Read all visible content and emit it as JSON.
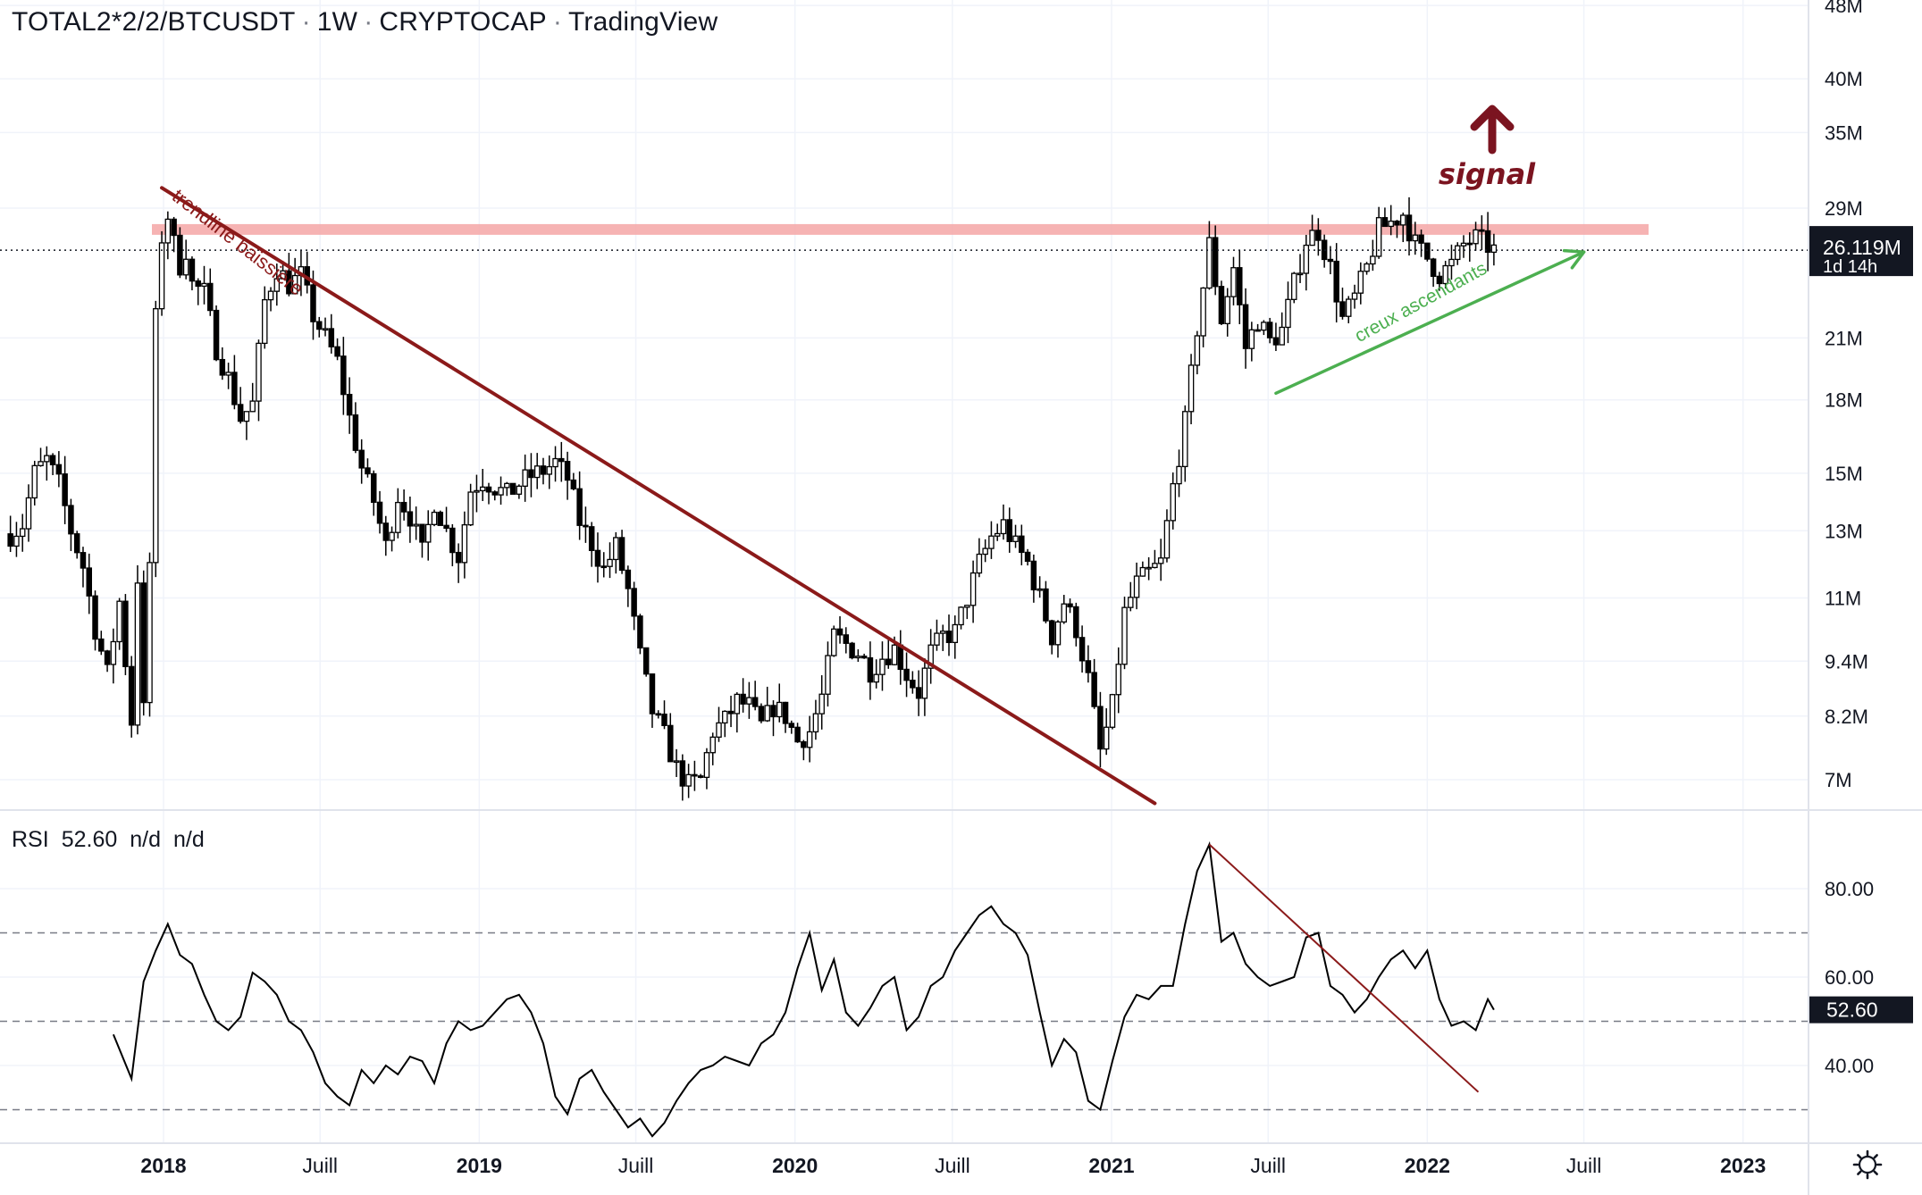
{
  "header": {
    "symbol": "TOTAL2*2/2/BTCUSDT",
    "interval": "1W",
    "exchange": "CRYPTOCAP",
    "source": "TradingView"
  },
  "rsi_header": {
    "name": "RSI",
    "value": "52.60",
    "na1": "n/d",
    "na2": "n/d"
  },
  "price_badge": {
    "value": "26.119M",
    "countdown": "1d 14h"
  },
  "rsi_badge": {
    "value": "52.60"
  },
  "annotations": {
    "trendline": "trendline baissière",
    "creux": "creux ascendants",
    "signal": "signal"
  },
  "colors": {
    "trendline": "#8b1a1a",
    "resistance": "#f4a6a6",
    "green_arrow": "#4caf50",
    "signal": "#7b1420",
    "candle": "#000000"
  },
  "chart_data": [
    {
      "type": "candlestick",
      "scale": "log",
      "x_tick_labels": [
        "2018",
        "Juill",
        "2019",
        "Juill",
        "2020",
        "Juill",
        "2021",
        "Juill",
        "2022",
        "Juill",
        "2023"
      ],
      "y_tick_labels": [
        "48M",
        "40M",
        "35M",
        "29M",
        "21M",
        "18M",
        "15M",
        "13M",
        "11M",
        "9.4M",
        "8.2M",
        "7M"
      ],
      "y_tick_values": [
        48,
        40,
        35,
        29,
        21,
        18,
        15,
        13,
        11,
        9.4,
        8.2,
        7
      ],
      "last_value": 26.119,
      "resistance_level": 27.5,
      "trendline": {
        "from": [
          "2017-12-30",
          30.5
        ],
        "to": [
          "2021-02-20",
          6.6
        ]
      },
      "green_arrow": {
        "from": [
          "2021-07-10",
          18.3
        ],
        "to": [
          "2022-07-01",
          26.0
        ]
      },
      "weekly_close": [
        [
          "2017-07-08",
          12.9
        ],
        [
          "2017-07-22",
          13.2
        ],
        [
          "2017-08-05",
          15.0
        ],
        [
          "2017-08-19",
          15.5
        ],
        [
          "2017-09-02",
          14.6
        ],
        [
          "2017-09-16",
          13.0
        ],
        [
          "2017-09-30",
          11.9
        ],
        [
          "2017-10-14",
          10.2
        ],
        [
          "2017-10-28",
          9.1
        ],
        [
          "2017-11-11",
          10.9
        ],
        [
          "2017-11-25",
          8.1
        ],
        [
          "2017-12-02",
          11.6
        ],
        [
          "2017-12-09",
          8.3
        ],
        [
          "2017-12-16",
          12.0
        ],
        [
          "2017-12-23",
          22.0
        ],
        [
          "2017-12-30",
          27.0
        ],
        [
          "2018-01-06",
          28.5
        ],
        [
          "2018-01-13",
          26.5
        ],
        [
          "2018-01-20",
          25.2
        ],
        [
          "2018-01-27",
          26.2
        ],
        [
          "2018-02-03",
          24.0
        ],
        [
          "2018-02-17",
          23.5
        ],
        [
          "2018-03-03",
          20.5
        ],
        [
          "2018-03-17",
          19.0
        ],
        [
          "2018-03-31",
          17.2
        ],
        [
          "2018-04-14",
          17.8
        ],
        [
          "2018-04-28",
          23.0
        ],
        [
          "2018-05-12",
          25.0
        ],
        [
          "2018-05-26",
          24.0
        ],
        [
          "2018-06-09",
          24.5
        ],
        [
          "2018-06-23",
          22.2
        ],
        [
          "2018-07-07",
          21.0
        ],
        [
          "2018-07-21",
          19.8
        ],
        [
          "2018-08-04",
          17.2
        ],
        [
          "2018-08-18",
          15.2
        ],
        [
          "2018-09-01",
          14.0
        ],
        [
          "2018-09-15",
          12.5
        ],
        [
          "2018-09-29",
          14.2
        ],
        [
          "2018-10-13",
          13.5
        ],
        [
          "2018-10-27",
          12.3
        ],
        [
          "2018-11-10",
          14.0
        ],
        [
          "2018-11-24",
          13.0
        ],
        [
          "2018-12-08",
          12.2
        ],
        [
          "2018-12-22",
          14.4
        ],
        [
          "2019-01-05",
          14.8
        ],
        [
          "2019-01-19",
          14.5
        ],
        [
          "2019-02-02",
          14.2
        ],
        [
          "2019-02-16",
          14.6
        ],
        [
          "2019-03-02",
          14.9
        ],
        [
          "2019-03-16",
          15.1
        ],
        [
          "2019-03-30",
          15.4
        ],
        [
          "2019-04-13",
          14.8
        ],
        [
          "2019-04-27",
          13.3
        ],
        [
          "2019-05-11",
          12.6
        ],
        [
          "2019-05-25",
          11.8
        ],
        [
          "2019-06-08",
          12.5
        ],
        [
          "2019-06-22",
          11.2
        ],
        [
          "2019-07-06",
          9.5
        ],
        [
          "2019-07-20",
          8.3
        ],
        [
          "2019-08-03",
          7.8
        ],
        [
          "2019-08-17",
          7.2
        ],
        [
          "2019-08-31",
          6.9
        ],
        [
          "2019-09-14",
          7.0
        ],
        [
          "2019-09-28",
          7.9
        ],
        [
          "2019-10-12",
          8.1
        ],
        [
          "2019-10-26",
          8.5
        ],
        [
          "2019-11-09",
          8.4
        ],
        [
          "2019-11-23",
          8.0
        ],
        [
          "2019-12-07",
          8.4
        ],
        [
          "2019-12-21",
          8.2
        ],
        [
          "2020-01-04",
          7.7
        ],
        [
          "2020-01-18",
          7.9
        ],
        [
          "2020-02-01",
          8.6
        ],
        [
          "2020-02-15",
          10.0
        ],
        [
          "2020-02-29",
          9.8
        ],
        [
          "2020-03-14",
          9.6
        ],
        [
          "2020-03-28",
          9.2
        ],
        [
          "2020-04-11",
          9.5
        ],
        [
          "2020-04-25",
          9.7
        ],
        [
          "2020-05-09",
          9.1
        ],
        [
          "2020-05-23",
          8.7
        ],
        [
          "2020-06-06",
          9.6
        ],
        [
          "2020-06-20",
          10.0
        ],
        [
          "2020-07-04",
          10.1
        ],
        [
          "2020-07-18",
          11.0
        ],
        [
          "2020-08-01",
          12.0
        ],
        [
          "2020-08-15",
          12.8
        ],
        [
          "2020-08-29",
          13.2
        ],
        [
          "2020-09-12",
          12.5
        ],
        [
          "2020-09-26",
          12.0
        ],
        [
          "2020-10-10",
          11.0
        ],
        [
          "2020-10-24",
          10.0
        ],
        [
          "2020-11-07",
          10.9
        ],
        [
          "2020-11-21",
          10.2
        ],
        [
          "2020-12-05",
          9.0
        ],
        [
          "2020-12-19",
          7.5
        ],
        [
          "2021-01-02",
          8.4
        ],
        [
          "2021-01-16",
          10.6
        ],
        [
          "2021-01-30",
          11.4
        ],
        [
          "2021-02-13",
          11.7
        ],
        [
          "2021-02-27",
          12.0
        ],
        [
          "2021-03-13",
          14.5
        ],
        [
          "2021-03-27",
          17.0
        ],
        [
          "2021-04-10",
          21.5
        ],
        [
          "2021-04-24",
          26.5
        ],
        [
          "2021-05-08",
          22.0
        ],
        [
          "2021-05-22",
          25.0
        ],
        [
          "2021-06-05",
          20.5
        ],
        [
          "2021-06-19",
          22.0
        ],
        [
          "2021-07-03",
          20.8
        ],
        [
          "2021-07-17",
          21.4
        ],
        [
          "2021-07-31",
          24.0
        ],
        [
          "2021-08-14",
          26.8
        ],
        [
          "2021-08-28",
          27.4
        ],
        [
          "2021-09-11",
          25.0
        ],
        [
          "2021-09-25",
          22.0
        ],
        [
          "2021-10-09",
          23.2
        ],
        [
          "2021-10-23",
          25.0
        ],
        [
          "2021-11-06",
          27.5
        ],
        [
          "2021-11-20",
          28.0
        ],
        [
          "2021-12-04",
          28.6
        ],
        [
          "2021-12-18",
          26.5
        ],
        [
          "2022-01-01",
          25.6
        ],
        [
          "2022-01-15",
          24.6
        ],
        [
          "2022-01-29",
          25.2
        ],
        [
          "2022-02-12",
          26.5
        ],
        [
          "2022-02-26",
          26.9
        ],
        [
          "2022-03-12",
          26.4
        ],
        [
          "2022-03-19",
          26.119
        ]
      ]
    },
    {
      "type": "line",
      "name": "RSI",
      "y_tick_labels": [
        "80.00",
        "60.00",
        "40.00"
      ],
      "y_tick_values": [
        80,
        60,
        40
      ],
      "bands": [
        70,
        50,
        30
      ],
      "last_value": 52.6,
      "trendline": {
        "from": [
          "2021-04-24",
          90.0
        ],
        "to": [
          "2022-03-01",
          34.0
        ]
      },
      "x": [
        "2017-11-04",
        "2017-11-25",
        "2017-12-09",
        "2017-12-23",
        "2018-01-06",
        "2018-01-20",
        "2018-02-03",
        "2018-02-17",
        "2018-03-03",
        "2018-03-17",
        "2018-03-31",
        "2018-04-14",
        "2018-04-28",
        "2018-05-12",
        "2018-05-26",
        "2018-06-09",
        "2018-06-23",
        "2018-07-07",
        "2018-07-21",
        "2018-08-04",
        "2018-08-18",
        "2018-09-01",
        "2018-09-15",
        "2018-09-29",
        "2018-10-13",
        "2018-10-27",
        "2018-11-10",
        "2018-11-24",
        "2018-12-08",
        "2018-12-22",
        "2019-01-05",
        "2019-01-19",
        "2019-02-02",
        "2019-02-16",
        "2019-03-02",
        "2019-03-16",
        "2019-03-30",
        "2019-04-13",
        "2019-04-27",
        "2019-05-11",
        "2019-05-25",
        "2019-06-08",
        "2019-06-22",
        "2019-07-06",
        "2019-07-20",
        "2019-08-03",
        "2019-08-17",
        "2019-08-31",
        "2019-09-14",
        "2019-09-28",
        "2019-10-12",
        "2019-10-26",
        "2019-11-09",
        "2019-11-23",
        "2019-12-07",
        "2019-12-21",
        "2020-01-04",
        "2020-01-18",
        "2020-02-01",
        "2020-02-15",
        "2020-02-29",
        "2020-03-14",
        "2020-03-28",
        "2020-04-11",
        "2020-04-25",
        "2020-05-09",
        "2020-05-23",
        "2020-06-06",
        "2020-06-20",
        "2020-07-04",
        "2020-07-18",
        "2020-08-01",
        "2020-08-15",
        "2020-08-29",
        "2020-09-12",
        "2020-09-26",
        "2020-10-10",
        "2020-10-24",
        "2020-11-07",
        "2020-11-21",
        "2020-12-05",
        "2020-12-19",
        "2021-01-02",
        "2021-01-16",
        "2021-01-30",
        "2021-02-13",
        "2021-02-27",
        "2021-03-13",
        "2021-03-27",
        "2021-04-10",
        "2021-04-24",
        "2021-05-08",
        "2021-05-22",
        "2021-06-05",
        "2021-06-19",
        "2021-07-03",
        "2021-07-17",
        "2021-07-31",
        "2021-08-14",
        "2021-08-28",
        "2021-09-11",
        "2021-09-25",
        "2021-10-09",
        "2021-10-23",
        "2021-11-06",
        "2021-11-20",
        "2021-12-04",
        "2021-12-18",
        "2022-01-01",
        "2022-01-15",
        "2022-01-29",
        "2022-02-12",
        "2022-02-26",
        "2022-03-12",
        "2022-03-19"
      ],
      "values": [
        47,
        37,
        59,
        66,
        72,
        65,
        63,
        56,
        50,
        48,
        51,
        61,
        59,
        56,
        50,
        48,
        43,
        36,
        33,
        31,
        39,
        36,
        40,
        38,
        42,
        41,
        36,
        45,
        50,
        48,
        49,
        52,
        55,
        56,
        52,
        45,
        33,
        29,
        37,
        39,
        34,
        30,
        26,
        28,
        24,
        27,
        32,
        36,
        39,
        40,
        42,
        41,
        40,
        45,
        47,
        52,
        62,
        70,
        57,
        64,
        52,
        49,
        53,
        58,
        60,
        48,
        51,
        58,
        60,
        66,
        70,
        74,
        76,
        72,
        70,
        65,
        52,
        40,
        46,
        43,
        32,
        30,
        41,
        51,
        56,
        55,
        58,
        58,
        72,
        84,
        90,
        68,
        70,
        63,
        60,
        58,
        59,
        60,
        69,
        70,
        58,
        56,
        52,
        55,
        60,
        64,
        66,
        62,
        66,
        55,
        49,
        50,
        48,
        55,
        52.6
      ]
    }
  ]
}
